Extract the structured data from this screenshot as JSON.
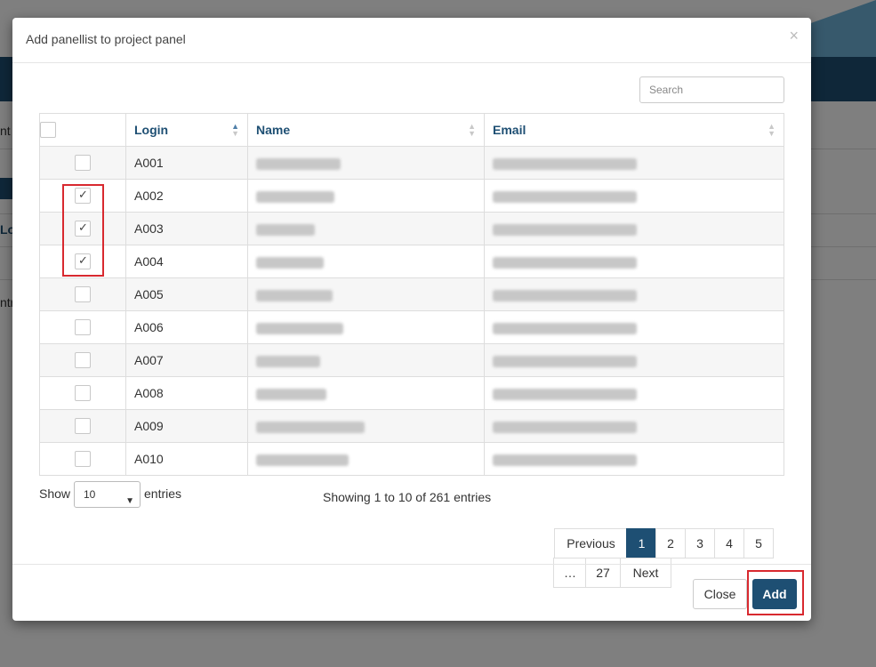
{
  "background": {
    "fragments": [
      "nt",
      "Lo",
      "ntri"
    ]
  },
  "modal": {
    "title": "Add panellist to project panel",
    "close_glyph": "×",
    "search_placeholder": "Search",
    "columns": [
      "Login",
      "Name",
      "Email"
    ],
    "rows": [
      {
        "login": "A001",
        "checked": false
      },
      {
        "login": "A002",
        "checked": true
      },
      {
        "login": "A003",
        "checked": true
      },
      {
        "login": "A004",
        "checked": true
      },
      {
        "login": "A005",
        "checked": false
      },
      {
        "login": "A006",
        "checked": false
      },
      {
        "login": "A007",
        "checked": false
      },
      {
        "login": "A008",
        "checked": false
      },
      {
        "login": "A009",
        "checked": false
      },
      {
        "login": "A010",
        "checked": false
      }
    ],
    "length": {
      "show_label": "Show",
      "selected": "10",
      "entries_label": "entries"
    },
    "info": "Showing 1 to 10 of 261 entries",
    "pagination": {
      "previous": "Previous",
      "pages": [
        "1",
        "2",
        "3",
        "4",
        "5"
      ],
      "ellipsis": "…",
      "last": "27",
      "next": "Next",
      "active": "1"
    },
    "buttons": {
      "close": "Close",
      "add": "Add"
    }
  },
  "colors": {
    "accent": "#1e4f73",
    "highlight": "#d8292f"
  }
}
